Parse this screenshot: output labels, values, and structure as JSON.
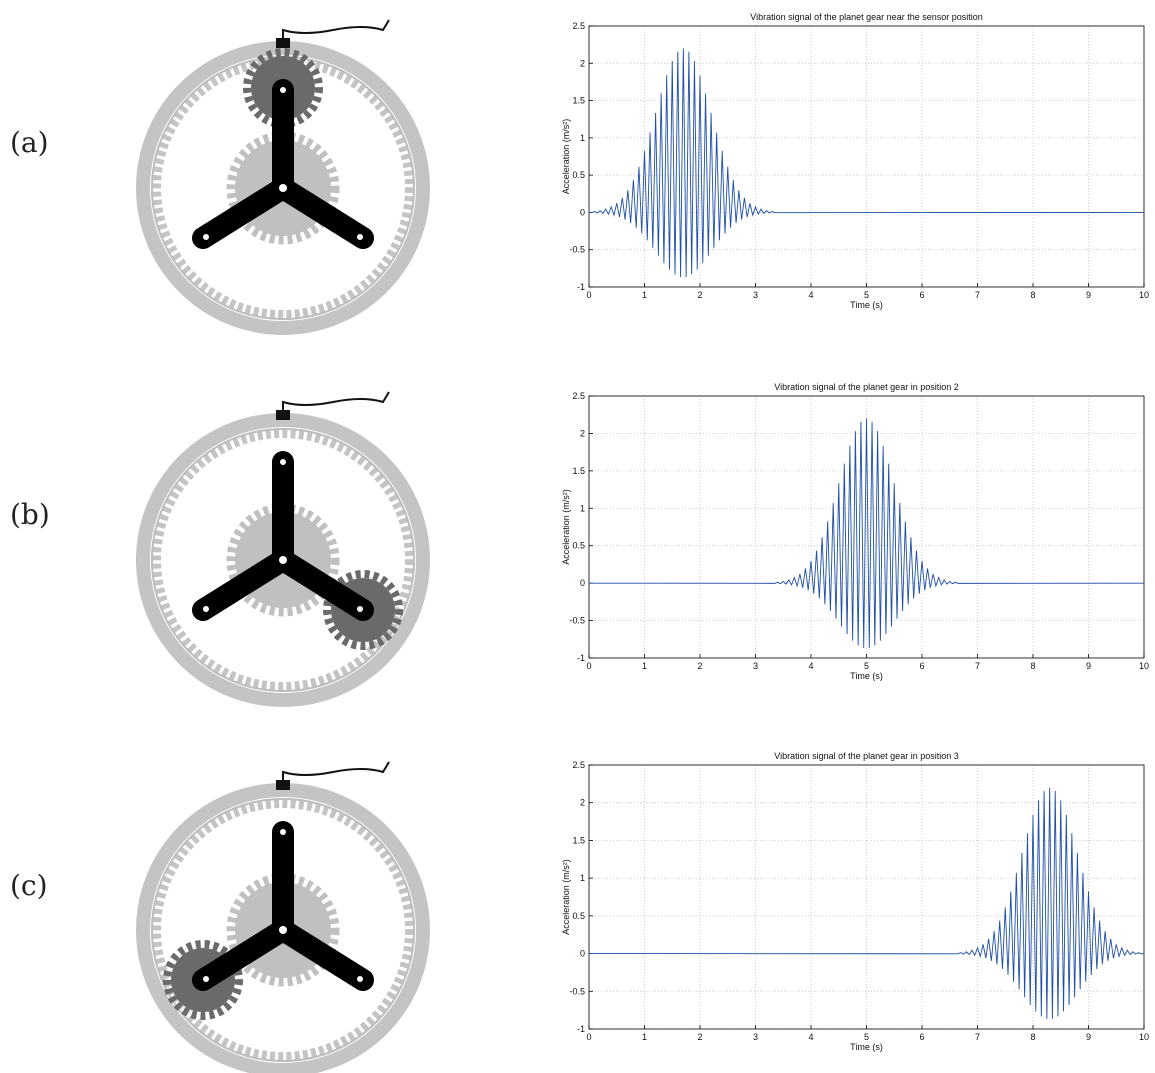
{
  "panel_labels": [
    "(a)",
    "(b)",
    "(c)"
  ],
  "chart_data": [
    {
      "type": "line",
      "title": "Vibration signal of the planet gear near the sensor position",
      "xlabel": "Time (s)",
      "ylabel": "Acceleration (m/s²)",
      "color": "#1f4fa8",
      "grid": true,
      "xlim": [
        0,
        10
      ],
      "ylim": [
        -1,
        2.5
      ],
      "xticks": [
        0,
        1,
        2,
        3,
        4,
        5,
        6,
        7,
        8,
        9,
        10
      ],
      "yticks": [
        -1,
        -0.5,
        0,
        0.5,
        1,
        1.5,
        2,
        2.5
      ],
      "x": [
        0,
        0.05,
        0.1,
        0.15,
        0.2,
        0.25,
        0.3,
        0.35,
        0.4,
        0.45,
        0.5,
        0.55,
        0.6,
        0.65,
        0.7,
        0.75,
        0.8,
        0.85,
        0.9,
        0.95,
        1,
        1.05,
        1.1,
        1.15,
        1.2,
        1.25,
        1.3,
        1.35,
        1.4,
        1.45,
        1.5,
        1.55,
        1.6,
        1.65,
        1.7,
        1.75,
        1.8,
        1.85,
        1.9,
        1.95,
        2,
        2.05,
        2.1,
        2.15,
        2.2,
        2.25,
        2.3,
        2.35,
        2.4,
        2.45,
        2.5,
        2.55,
        2.6,
        2.65,
        2.7,
        2.75,
        2.8,
        2.85,
        2.9,
        2.95,
        3,
        3.05,
        3.1,
        3.15,
        3.2,
        3.25,
        3.3,
        3.35,
        10
      ],
      "values": [
        0,
        -0.003,
        0.013,
        -0.007,
        0.024,
        -0.013,
        0.044,
        -0.023,
        0.075,
        -0.038,
        0.123,
        -0.062,
        0.196,
        -0.096,
        0.297,
        -0.143,
        0.436,
        -0.205,
        0.612,
        -0.283,
        0.825,
        -0.374,
        1.071,
        -0.475,
        1.335,
        -0.58,
        1.597,
        -0.681,
        1.837,
        -0.767,
        2.031,
        -0.832,
        2.156,
        -0.866,
        2.2,
        -0.866,
        2.156,
        -0.832,
        2.031,
        -0.767,
        1.837,
        -0.681,
        1.597,
        -0.58,
        1.335,
        -0.475,
        1.071,
        -0.374,
        0.825,
        -0.283,
        0.612,
        -0.205,
        0.436,
        -0.143,
        0.297,
        -0.096,
        0.196,
        -0.062,
        0.123,
        -0.038,
        0.075,
        -0.023,
        0.044,
        -0.013,
        0.024,
        -0.007,
        0.013,
        -0.003,
        0
      ]
    },
    {
      "type": "line",
      "title": "Vibration signal of the planet gear in position 2",
      "xlabel": "Time (s)",
      "ylabel": "Acceleration (m/s²)",
      "color": "#1f4fa8",
      "grid": true,
      "xlim": [
        0,
        10
      ],
      "ylim": [
        -1,
        2.5
      ],
      "xticks": [
        0,
        1,
        2,
        3,
        4,
        5,
        6,
        7,
        8,
        9,
        10
      ],
      "yticks": [
        -1,
        -0.5,
        0,
        0.5,
        1,
        1.5,
        2,
        2.5
      ],
      "x": [
        0,
        3.35,
        3.4,
        3.45,
        3.5,
        3.55,
        3.6,
        3.65,
        3.7,
        3.75,
        3.8,
        3.85,
        3.9,
        3.95,
        4,
        4.05,
        4.1,
        4.15,
        4.2,
        4.25,
        4.3,
        4.35,
        4.4,
        4.45,
        4.5,
        4.55,
        4.6,
        4.65,
        4.7,
        4.75,
        4.8,
        4.85,
        4.9,
        4.95,
        5,
        5.05,
        5.1,
        5.15,
        5.2,
        5.25,
        5.3,
        5.35,
        5.4,
        5.45,
        5.5,
        5.55,
        5.6,
        5.65,
        5.7,
        5.75,
        5.8,
        5.85,
        5.9,
        5.95,
        6,
        6.05,
        6.1,
        6.15,
        6.2,
        6.25,
        6.3,
        6.35,
        6.4,
        6.45,
        6.5,
        6.55,
        6.6,
        6.65,
        10
      ],
      "values": [
        0,
        -0.003,
        0.013,
        -0.007,
        0.024,
        -0.013,
        0.044,
        -0.023,
        0.075,
        -0.038,
        0.123,
        -0.062,
        0.196,
        -0.096,
        0.297,
        -0.143,
        0.436,
        -0.205,
        0.612,
        -0.283,
        0.825,
        -0.374,
        1.071,
        -0.475,
        1.335,
        -0.58,
        1.597,
        -0.681,
        1.837,
        -0.767,
        2.031,
        -0.832,
        2.156,
        -0.866,
        2.2,
        -0.866,
        2.156,
        -0.832,
        2.031,
        -0.767,
        1.837,
        -0.681,
        1.597,
        -0.58,
        1.335,
        -0.475,
        1.071,
        -0.374,
        0.825,
        -0.283,
        0.612,
        -0.205,
        0.436,
        -0.143,
        0.297,
        -0.096,
        0.196,
        -0.062,
        0.123,
        -0.038,
        0.075,
        -0.023,
        0.044,
        -0.013,
        0.024,
        -0.007,
        0.013,
        -0.003,
        0
      ]
    },
    {
      "type": "line",
      "title": "Vibration signal of the planet gear in position 3",
      "xlabel": "Time (s)",
      "ylabel": "Acceleration (m/s²)",
      "color": "#1f4fa8",
      "grid": true,
      "xlim": [
        0,
        10
      ],
      "ylim": [
        -1,
        2.5
      ],
      "xticks": [
        0,
        1,
        2,
        3,
        4,
        5,
        6,
        7,
        8,
        9,
        10
      ],
      "yticks": [
        -1,
        -0.5,
        0,
        0.5,
        1,
        1.5,
        2,
        2.5
      ],
      "x": [
        0,
        6.65,
        6.7,
        6.75,
        6.8,
        6.85,
        6.9,
        6.95,
        7,
        7.05,
        7.1,
        7.15,
        7.2,
        7.25,
        7.3,
        7.35,
        7.4,
        7.45,
        7.5,
        7.55,
        7.6,
        7.65,
        7.7,
        7.75,
        7.8,
        7.85,
        7.9,
        7.95,
        8,
        8.05,
        8.1,
        8.15,
        8.2,
        8.25,
        8.3,
        8.35,
        8.4,
        8.45,
        8.5,
        8.55,
        8.6,
        8.65,
        8.7,
        8.75,
        8.8,
        8.85,
        8.9,
        8.95,
        9,
        9.05,
        9.1,
        9.15,
        9.2,
        9.25,
        9.3,
        9.35,
        9.4,
        9.45,
        9.5,
        9.55,
        9.6,
        9.65,
        9.7,
        9.75,
        9.8,
        9.85,
        9.9,
        9.95,
        10
      ],
      "values": [
        0,
        -0.003,
        0.013,
        -0.007,
        0.024,
        -0.013,
        0.044,
        -0.023,
        0.075,
        -0.038,
        0.123,
        -0.062,
        0.196,
        -0.096,
        0.297,
        -0.143,
        0.436,
        -0.205,
        0.612,
        -0.283,
        0.825,
        -0.374,
        1.071,
        -0.475,
        1.335,
        -0.58,
        1.597,
        -0.681,
        1.837,
        -0.767,
        2.031,
        -0.832,
        2.156,
        -0.866,
        2.2,
        -0.866,
        2.156,
        -0.832,
        2.031,
        -0.767,
        1.837,
        -0.681,
        1.597,
        -0.58,
        1.335,
        -0.475,
        1.071,
        -0.374,
        0.825,
        -0.283,
        0.612,
        -0.205,
        0.436,
        -0.143,
        0.297,
        -0.096,
        0.196,
        -0.062,
        0.123,
        -0.038,
        0.075,
        -0.023,
        0.044,
        -0.013,
        0.024,
        -0.007,
        0.013,
        -0.003,
        0
      ]
    }
  ]
}
